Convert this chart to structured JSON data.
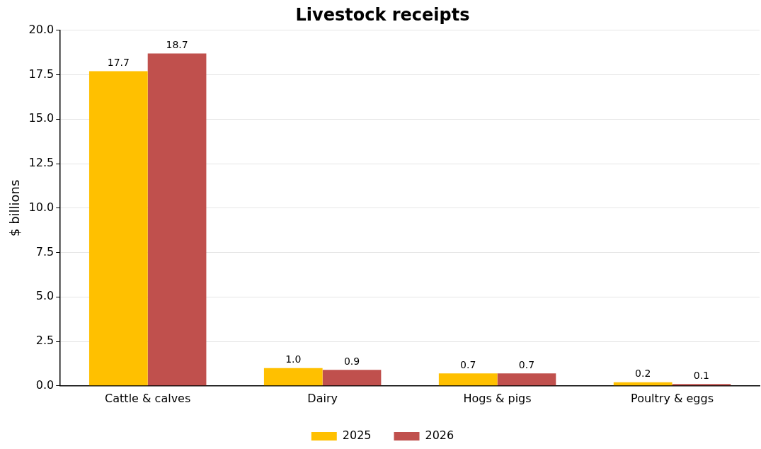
{
  "chart_data": {
    "type": "bar",
    "title": "Livestock receipts",
    "ylabel": "$ billions",
    "categories": [
      "Cattle & calves",
      "Dairy",
      "Hogs & pigs",
      "Poultry & eggs"
    ],
    "series": [
      {
        "name": "2025",
        "color": "#ffc000",
        "values": [
          17.7,
          1.0,
          0.7,
          0.2
        ],
        "value_labels": [
          "17.7",
          "1.0",
          "0.7",
          "0.2"
        ]
      },
      {
        "name": "2026",
        "color": "#c0504d",
        "values": [
          18.7,
          0.9,
          0.7,
          0.1
        ],
        "value_labels": [
          "18.7",
          "0.9",
          "0.7",
          "0.1"
        ]
      }
    ],
    "ylim": [
      0,
      20
    ],
    "yticks": [
      {
        "value": 0,
        "label": "0.0"
      },
      {
        "value": 2.5,
        "label": "2.5"
      },
      {
        "value": 5,
        "label": "5.0"
      },
      {
        "value": 7.5,
        "label": "7.5"
      },
      {
        "value": 10,
        "label": "10.0"
      },
      {
        "value": 12.5,
        "label": "12.5"
      },
      {
        "value": 15,
        "label": "15.0"
      },
      {
        "value": 17.5,
        "label": "17.5"
      },
      {
        "value": 20,
        "label": "20.0"
      }
    ],
    "grid": "y",
    "legend": "bottom"
  }
}
